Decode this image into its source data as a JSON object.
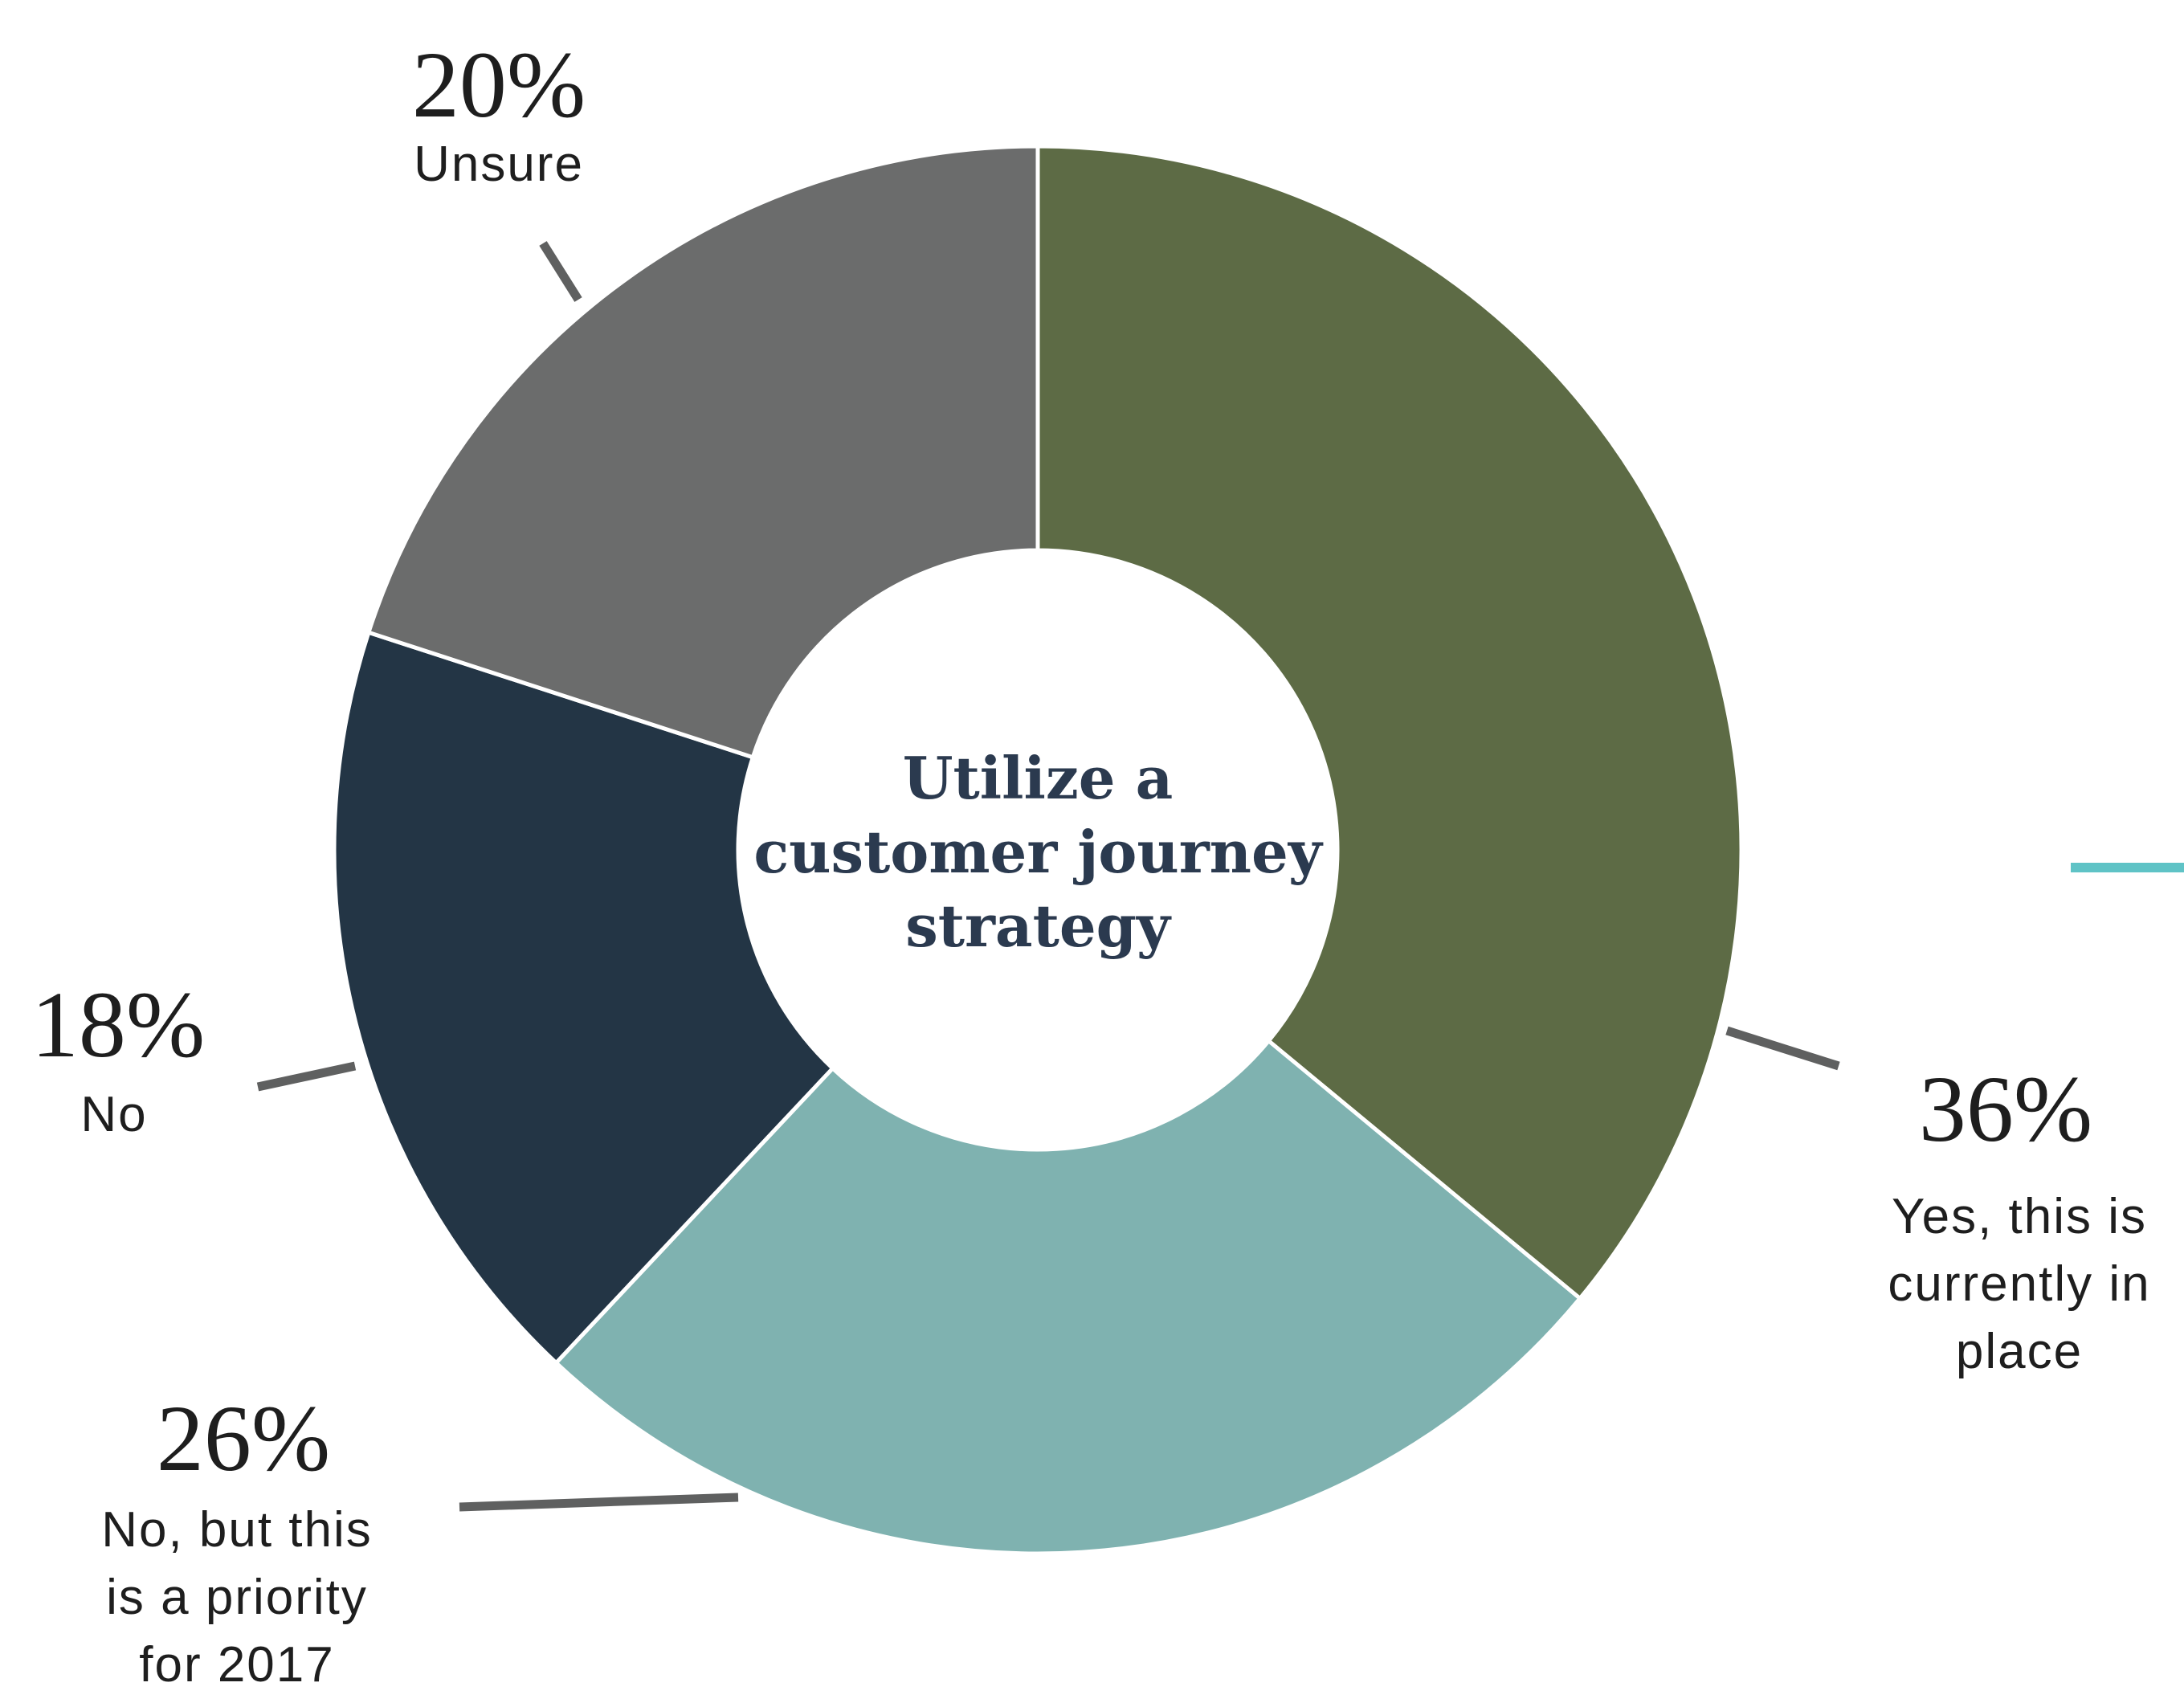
{
  "chart_data": {
    "type": "donut",
    "title": [
      "Utilize a",
      "customer journey",
      "strategy"
    ],
    "categories": [
      [
        "Yes, this is",
        "currently in",
        "place"
      ],
      [
        "No, but this",
        "is a priority",
        "for 2017"
      ],
      [
        "No"
      ],
      [
        "Unsure"
      ]
    ],
    "values": [
      36,
      26,
      18,
      20
    ],
    "value_labels": [
      "36%",
      "26%",
      "18%",
      "20%"
    ],
    "colors": [
      "#5d6b45",
      "#7fb2b0",
      "#233545",
      "#6b6c6c"
    ]
  }
}
